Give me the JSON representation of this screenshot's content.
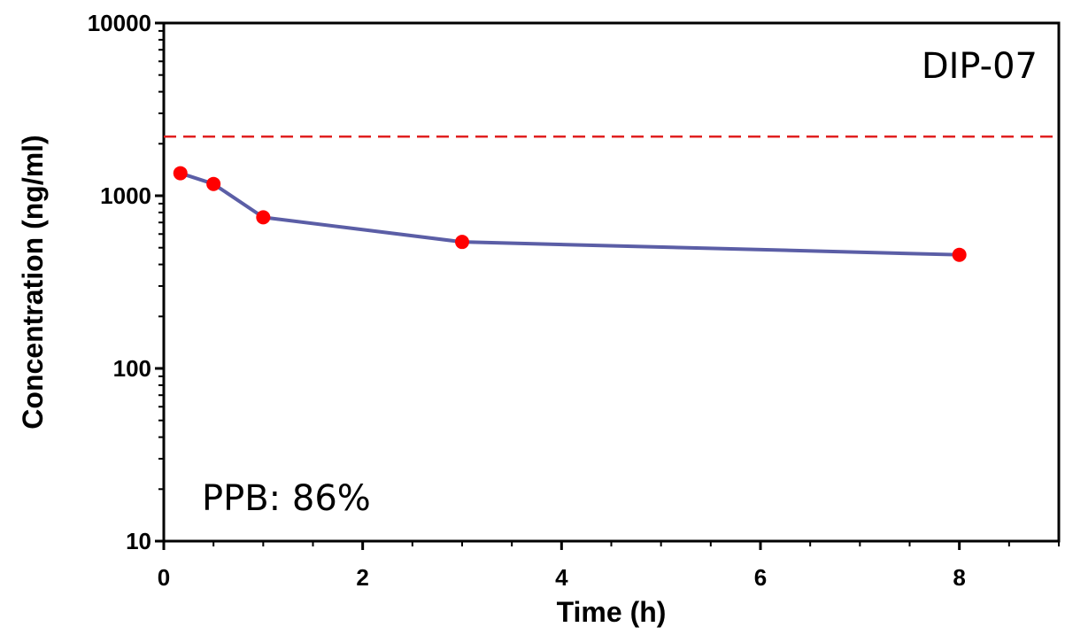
{
  "chart_data": {
    "type": "line",
    "title": "",
    "xlabel": "Time (h)",
    "ylabel": "Concentration (ng/ml)",
    "xlim": [
      0,
      9
    ],
    "ylim": [
      10,
      10000
    ],
    "y_scale": "log",
    "x_ticks": [
      0,
      2,
      4,
      6,
      8
    ],
    "x_tick_labels": [
      "0",
      "2",
      "4",
      "6",
      "8"
    ],
    "y_ticks": [
      10,
      100,
      1000,
      10000
    ],
    "y_tick_labels": [
      "10",
      "100",
      "1000",
      "10000"
    ],
    "grid": false,
    "legend": "none",
    "series": [
      {
        "x": [
          0.167,
          0.5,
          1,
          3,
          8
        ],
        "y": [
          1350,
          1170,
          750,
          540,
          455
        ]
      }
    ],
    "reference_line": {
      "y": 2200,
      "style": "dashed",
      "color": "#e02020"
    },
    "annotations": {
      "compound": "DIP-07",
      "ppb": "PPB: 86%"
    },
    "colors": {
      "line": "#5b5ea6",
      "marker": "#ff0000",
      "reference": "#e02020",
      "axis": "#000000"
    }
  }
}
